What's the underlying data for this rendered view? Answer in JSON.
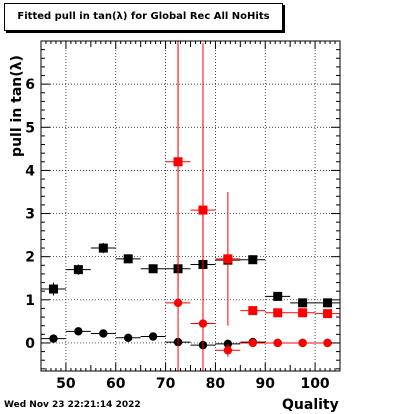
{
  "title": "Fitted pull in tan(λ) for Global Rec All NoHits",
  "timestamp": "Wed Nov 23 22:21:14 2022",
  "chart_data": {
    "type": "scatter",
    "title": "Fitted pull in tan(λ) for Global Rec All NoHits",
    "xlabel": "Quality",
    "ylabel": "pull in tan(λ)",
    "xlim": [
      45,
      105
    ],
    "ylim": [
      -0.65,
      7.0
    ],
    "grid": true,
    "x_ticks": [
      50,
      60,
      70,
      80,
      90,
      100
    ],
    "y_ticks": [
      0,
      1,
      2,
      3,
      4,
      5,
      6
    ],
    "colors": {
      "black": "#000000",
      "red": "#ff0000"
    },
    "series": [
      {
        "marker": "square",
        "color": "black",
        "points": [
          {
            "x": 47.5,
            "y": 1.25,
            "xerr": 2.5,
            "yerr": 0.15
          },
          {
            "x": 52.5,
            "y": 1.7,
            "xerr": 2.5,
            "yerr": 0.12
          },
          {
            "x": 57.5,
            "y": 2.2,
            "xerr": 2.5,
            "yerr": 0.12
          },
          {
            "x": 62.5,
            "y": 1.95,
            "xerr": 2.5,
            "yerr": 0.05
          },
          {
            "x": 67.5,
            "y": 1.72,
            "xerr": 2.5,
            "yerr": 0.05
          },
          {
            "x": 72.5,
            "y": 1.72,
            "xerr": 2.5,
            "yerr": 0.08
          },
          {
            "x": 77.5,
            "y": 1.82,
            "xerr": 2.5,
            "yerr": 0.08
          },
          {
            "x": 82.5,
            "y": 1.92,
            "xerr": 2.5,
            "yerr": 0.05
          },
          {
            "x": 87.5,
            "y": 1.93,
            "xerr": 2.5,
            "yerr": 0.04
          },
          {
            "x": 92.5,
            "y": 1.08,
            "xerr": 2.5,
            "yerr": 0.03
          },
          {
            "x": 97.5,
            "y": 0.93,
            "xerr": 2.5,
            "yerr": 0.03
          },
          {
            "x": 102.5,
            "y": 0.93,
            "xerr": 2.5,
            "yerr": 0.03
          }
        ]
      },
      {
        "marker": "circle",
        "color": "black",
        "points": [
          {
            "x": 47.5,
            "y": 0.1,
            "xerr": 2.5,
            "yerr": 0.1
          },
          {
            "x": 52.5,
            "y": 0.27,
            "xerr": 2.5,
            "yerr": 0.08
          },
          {
            "x": 57.5,
            "y": 0.22,
            "xerr": 2.5,
            "yerr": 0.07
          },
          {
            "x": 62.5,
            "y": 0.12,
            "xerr": 2.5,
            "yerr": 0.05
          },
          {
            "x": 67.5,
            "y": 0.15,
            "xerr": 2.5,
            "yerr": 0.04
          },
          {
            "x": 72.5,
            "y": 0.02,
            "xerr": 2.5,
            "yerr": 0.04
          },
          {
            "x": 77.5,
            "y": -0.05,
            "xerr": 2.5,
            "yerr": 0.03
          },
          {
            "x": 82.5,
            "y": -0.02,
            "xerr": 2.5,
            "yerr": 0.03
          },
          {
            "x": 87.5,
            "y": 0.02,
            "xerr": 2.5,
            "yerr": 0.02
          },
          {
            "x": 92.5,
            "y": 0.0,
            "xerr": 2.5,
            "yerr": 0.02
          },
          {
            "x": 97.5,
            "y": 0.0,
            "xerr": 2.5,
            "yerr": 0.02
          },
          {
            "x": 102.5,
            "y": 0.0,
            "xerr": 2.5,
            "yerr": 0.02
          }
        ]
      },
      {
        "marker": "square",
        "color": "red",
        "points": [
          {
            "x": 72.5,
            "y": 4.2,
            "xerr": 2.5,
            "yerr": 3.0
          },
          {
            "x": 77.5,
            "y": 3.08,
            "xerr": 2.5,
            "yerr": 2.1
          },
          {
            "x": 82.5,
            "y": 1.95,
            "xerr": 2.5,
            "yerr": 1.55
          },
          {
            "x": 87.5,
            "y": 0.75,
            "xerr": 2.5,
            "yerr": 0.05
          },
          {
            "x": 92.5,
            "y": 0.7,
            "xerr": 2.5,
            "yerr": 0.03
          },
          {
            "x": 97.5,
            "y": 0.7,
            "xerr": 2.5,
            "yerr": 0.03
          },
          {
            "x": 102.5,
            "y": 0.68,
            "xerr": 2.5,
            "yerr": 0.03
          }
        ]
      },
      {
        "marker": "circle",
        "color": "red",
        "points": [
          {
            "x": 72.5,
            "y": 0.93,
            "xerr": 2.5,
            "yerr": 6.5
          },
          {
            "x": 77.5,
            "y": 0.45,
            "xerr": 2.5,
            "yerr": 6.5
          },
          {
            "x": 82.5,
            "y": -0.17,
            "xerr": 2.5,
            "yerr": 0.15
          },
          {
            "x": 87.5,
            "y": 0.0,
            "xerr": 2.5,
            "yerr": 0.04
          },
          {
            "x": 92.5,
            "y": 0.0,
            "xerr": 2.5,
            "yerr": 0.02
          },
          {
            "x": 97.5,
            "y": 0.0,
            "xerr": 2.5,
            "yerr": 0.02
          },
          {
            "x": 102.5,
            "y": 0.0,
            "xerr": 2.5,
            "yerr": 0.02
          }
        ]
      }
    ]
  }
}
